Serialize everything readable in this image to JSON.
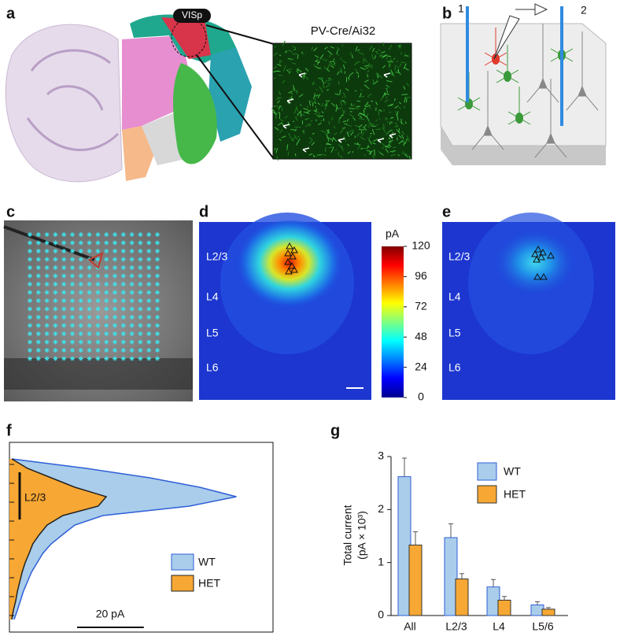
{
  "panels": {
    "a": {
      "label": "a",
      "region": "VISp",
      "inset_title": "PV-Cre/Ai32"
    },
    "b": {
      "label": "b",
      "electrode_1": "1",
      "electrode_2": "2"
    },
    "c": {
      "label": "c"
    },
    "d": {
      "label": "d",
      "layers": [
        "L2/3",
        "L4",
        "L5",
        "L6"
      ],
      "colorbar_title": "pA",
      "colorbar_lim": [
        0,
        120
      ],
      "colorbar_ticks": [
        0,
        24,
        48,
        72,
        96,
        120
      ]
    },
    "e": {
      "label": "e",
      "layers": [
        "L2/3",
        "L4",
        "L5",
        "L6"
      ]
    },
    "f": {
      "label": "f"
    },
    "g": {
      "label": "g"
    }
  },
  "chart_data": [
    {
      "type": "profile",
      "annotation": "L2/3",
      "xlim": [
        0,
        79
      ],
      "scale_bar": {
        "value": 20,
        "label": "20 pA"
      },
      "legend": "lower right",
      "series": [
        {
          "name": "WT",
          "color": "#a9cdea",
          "edge": "#2f5fd8",
          "values": [
            0.7,
            23,
            42,
            57,
            68,
            54,
            28,
            19.6,
            16,
            12.5,
            10,
            8.3,
            6.6,
            5.4,
            4.2,
            3.3,
            2.4,
            1.4
          ]
        },
        {
          "name": "HET",
          "color": "#f7a733",
          "edge": "#222222",
          "values": [
            0.7,
            5.4,
            12.5,
            19.6,
            29,
            26.6,
            16,
            11.3,
            9,
            7,
            5.9,
            4.7,
            3.8,
            3.1,
            2.4,
            1.9,
            1.2,
            0.7
          ]
        }
      ]
    },
    {
      "type": "bar",
      "y_label": [
        "Total current",
        "(pA × 10³)"
      ],
      "categories": [
        "All",
        "L2/3",
        "L4",
        "L5/6"
      ],
      "ylim": [
        0,
        3
      ],
      "yticks": [
        0,
        1,
        2,
        3
      ],
      "legend": "upper right",
      "series": [
        {
          "name": "WT",
          "color": "#a9cdea",
          "edge": "#2f5fd8",
          "values": [
            2.62,
            1.47,
            0.54,
            0.2
          ],
          "errors": [
            0.35,
            0.26,
            0.14,
            0.06
          ]
        },
        {
          "name": "HET",
          "color": "#f7a733",
          "edge": "#333333",
          "values": [
            1.33,
            0.69,
            0.29,
            0.12
          ],
          "errors": [
            0.25,
            0.1,
            0.07,
            0.03
          ]
        }
      ]
    }
  ]
}
